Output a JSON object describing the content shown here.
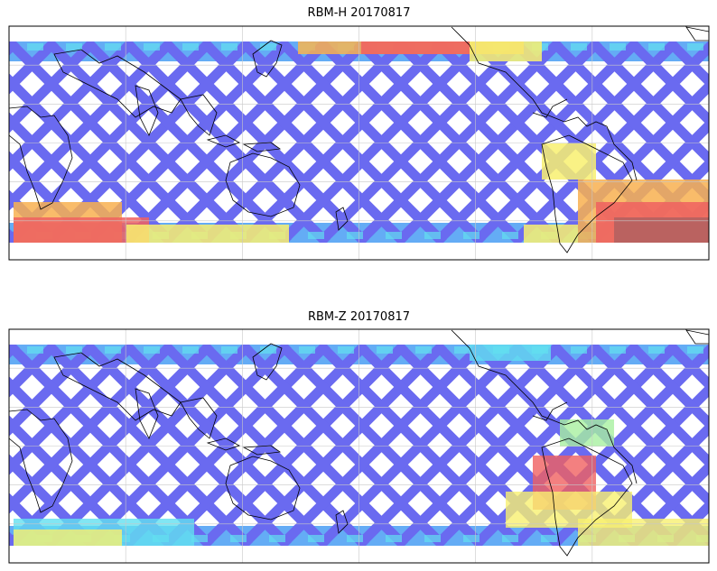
{
  "panels": [
    {
      "id": "top",
      "title": "RBM-H 20170817"
    },
    {
      "id": "bottom",
      "title": "RBM-Z 20170817"
    }
  ],
  "palette": {
    "low": "#6a6af0",
    "low_mid": "#5ca8f4",
    "mid": "#62e0f0",
    "mid_high": "#a8f0a0",
    "high": "#f8f070",
    "higher": "#f8b050",
    "very_high": "#f06060",
    "extreme": "#b06060",
    "coast": "#000000",
    "grid": "#c8c8c8"
  }
}
